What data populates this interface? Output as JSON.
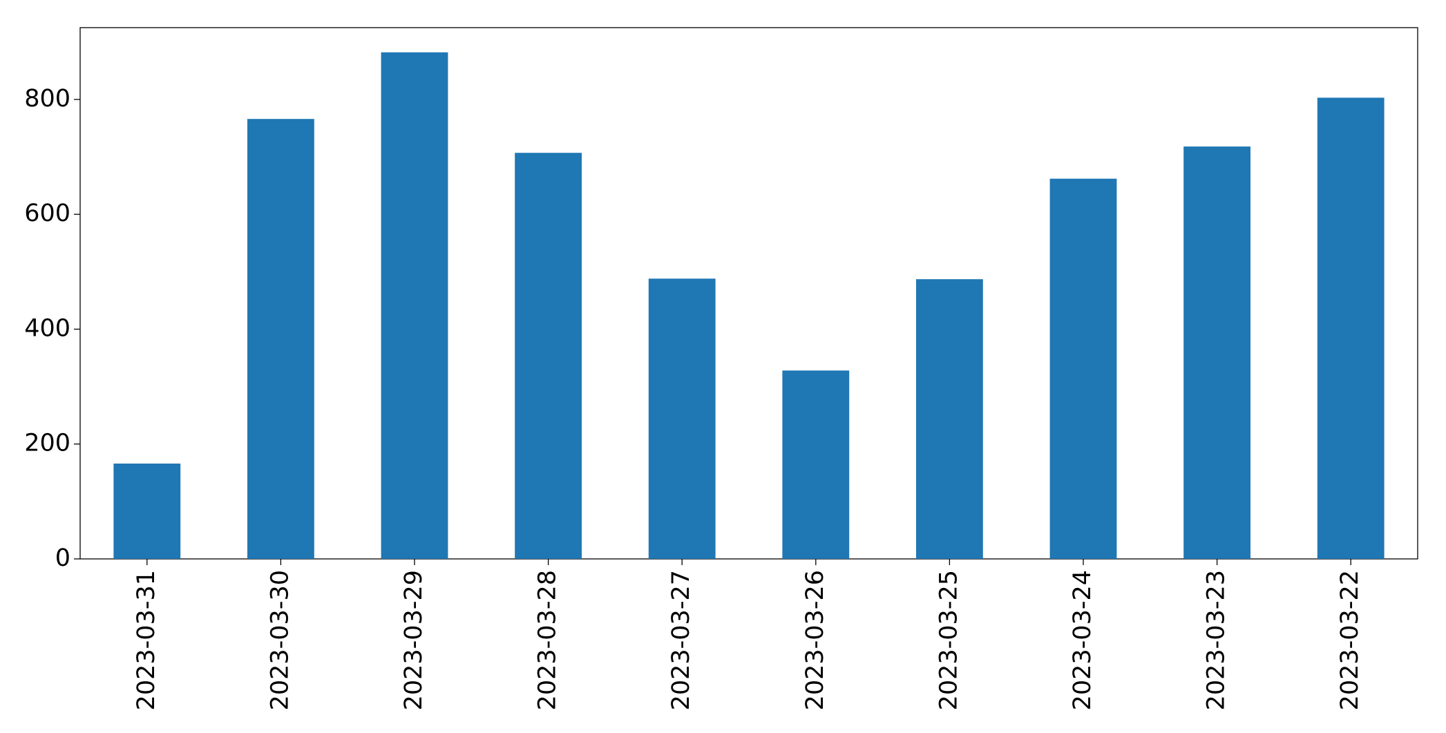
{
  "chart_data": {
    "type": "bar",
    "categories": [
      "2023-03-31",
      "2023-03-30",
      "2023-03-29",
      "2023-03-28",
      "2023-03-27",
      "2023-03-26",
      "2023-03-25",
      "2023-03-24",
      "2023-03-23",
      "2023-03-22"
    ],
    "values": [
      166,
      766,
      882,
      707,
      488,
      328,
      487,
      662,
      718,
      803
    ],
    "color": "#1f77b4",
    "ylim": [
      0,
      925
    ],
    "yticks": [
      0,
      200,
      400,
      600,
      800
    ],
    "grid": false
  }
}
